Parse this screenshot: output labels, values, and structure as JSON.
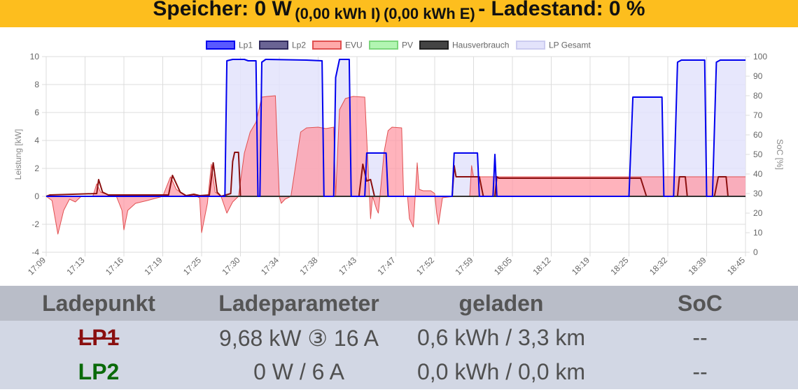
{
  "banner": {
    "speicher": "Speicher: 0 W",
    "import": "(0,00 kWh I)",
    "export": "(0,00 kWh E)",
    "ladestand": "- Ladestand: 0 %"
  },
  "chart_data": {
    "type": "line",
    "legend_position": "top",
    "legend": [
      {
        "label": "Lp1",
        "color": "#0000ee",
        "fill": "#5959ff"
      },
      {
        "label": "Lp2",
        "color": "#302a5c",
        "fill": "#6a6494"
      },
      {
        "label": "EVU",
        "color": "#e05050",
        "fill": "#ffaaaa"
      },
      {
        "label": "PV",
        "color": "#7cd67c",
        "fill": "#b2f5b2"
      },
      {
        "label": "Hausverbrauch",
        "color": "#222222",
        "fill": "#444444"
      },
      {
        "label": "LP Gesamt",
        "color": "#ccccf0",
        "fill": "#e3e3fb"
      }
    ],
    "y_left": {
      "label": "Leistung [kW]",
      "min": -4,
      "max": 10,
      "ticks": [
        "10",
        "8",
        "6",
        "4",
        "2",
        "0",
        "-2",
        "-4"
      ]
    },
    "y_right": {
      "label": "SoC [%]",
      "min": 0,
      "max": 100,
      "ticks": [
        "100",
        "90",
        "80",
        "70",
        "60",
        "50",
        "40",
        "30",
        "20",
        "10",
        "0"
      ]
    },
    "x_ticks": [
      "17:09",
      "17:13",
      "17:16",
      "17:19",
      "17:25",
      "17:30",
      "17:34",
      "17:38",
      "17:43",
      "17:47",
      "17:52",
      "17:59",
      "18:05",
      "18:12",
      "18:19",
      "18:25",
      "18:32",
      "18:39",
      "18:45"
    ],
    "grid": true,
    "series": [
      {
        "name": "Lp1",
        "points": [
          [
            0,
            0
          ],
          [
            4.6,
            0
          ],
          [
            4.65,
            9.7
          ],
          [
            4.8,
            9.8
          ],
          [
            5.1,
            9.8
          ],
          [
            5.2,
            9.7
          ],
          [
            5.4,
            9.7
          ],
          [
            5.45,
            0
          ],
          [
            5.5,
            0
          ],
          [
            5.55,
            9.6
          ],
          [
            5.65,
            9.8
          ],
          [
            6.7,
            9.75
          ],
          [
            7.1,
            9.7
          ],
          [
            7.15,
            0
          ],
          [
            7.4,
            0
          ],
          [
            7.45,
            8.5
          ],
          [
            7.55,
            9.8
          ],
          [
            7.8,
            9.8
          ],
          [
            7.85,
            0
          ],
          [
            8.2,
            0
          ],
          [
            8.25,
            3.1
          ],
          [
            8.75,
            3.1
          ],
          [
            8.8,
            0
          ],
          [
            10.45,
            0
          ],
          [
            10.5,
            3.1
          ],
          [
            11.1,
            3.1
          ],
          [
            11.15,
            0
          ],
          [
            11.5,
            0
          ],
          [
            11.55,
            3.0
          ],
          [
            11.6,
            0
          ],
          [
            15.0,
            0
          ],
          [
            15.1,
            7.1
          ],
          [
            15.85,
            7.1
          ],
          [
            15.9,
            0
          ],
          [
            16.15,
            0
          ],
          [
            16.25,
            9.6
          ],
          [
            16.35,
            9.75
          ],
          [
            16.95,
            9.75
          ],
          [
            17.0,
            0
          ],
          [
            17.15,
            0
          ],
          [
            17.25,
            9.6
          ],
          [
            17.35,
            9.75
          ],
          [
            18.0,
            9.75
          ]
        ]
      },
      {
        "name": "EVU",
        "points": [
          [
            0,
            0
          ],
          [
            0.15,
            -0.3
          ],
          [
            0.3,
            -2.7
          ],
          [
            0.45,
            -1.0
          ],
          [
            0.6,
            -0.2
          ],
          [
            0.75,
            -0.4
          ],
          [
            0.9,
            0
          ],
          [
            1.2,
            0
          ],
          [
            1.3,
            0.9
          ],
          [
            1.4,
            0.3
          ],
          [
            1.6,
            0.1
          ],
          [
            1.8,
            0.05
          ],
          [
            1.95,
            -1.0
          ],
          [
            2.0,
            -2.4
          ],
          [
            2.1,
            -1.0
          ],
          [
            2.3,
            -0.5
          ],
          [
            2.6,
            -0.3
          ],
          [
            3.0,
            0
          ],
          [
            3.2,
            1.4
          ],
          [
            3.35,
            0.5
          ],
          [
            3.6,
            0
          ],
          [
            3.8,
            0.1
          ],
          [
            3.95,
            -0.1
          ],
          [
            4.0,
            -2.6
          ],
          [
            4.15,
            -0.5
          ],
          [
            4.25,
            2.3
          ],
          [
            4.35,
            0.3
          ],
          [
            4.5,
            0
          ],
          [
            4.65,
            -1.2
          ],
          [
            4.8,
            -0.4
          ],
          [
            4.95,
            0
          ],
          [
            5.1,
            3.1
          ],
          [
            5.25,
            4.6
          ],
          [
            5.4,
            5.3
          ],
          [
            5.55,
            7.1
          ],
          [
            5.7,
            7.15
          ],
          [
            5.9,
            7.2
          ],
          [
            6.0,
            0
          ],
          [
            6.05,
            -0.5
          ],
          [
            6.15,
            -0.2
          ],
          [
            6.3,
            0
          ],
          [
            6.55,
            4.6
          ],
          [
            6.7,
            4.9
          ],
          [
            7.0,
            4.95
          ],
          [
            7.2,
            4.85
          ],
          [
            7.4,
            4.95
          ],
          [
            7.45,
            0
          ],
          [
            7.55,
            6.2
          ],
          [
            7.7,
            7.0
          ],
          [
            7.9,
            7.15
          ],
          [
            8.2,
            7.1
          ],
          [
            8.35,
            -1.6
          ],
          [
            8.4,
            0
          ],
          [
            8.5,
            -0.9
          ],
          [
            8.55,
            -1.2
          ],
          [
            8.7,
            3.2
          ],
          [
            8.8,
            4.7
          ],
          [
            8.9,
            4.95
          ],
          [
            9.15,
            4.9
          ],
          [
            9.2,
            0
          ],
          [
            9.3,
            0
          ],
          [
            9.35,
            -1.6
          ],
          [
            9.45,
            -2.2
          ],
          [
            9.55,
            2.4
          ],
          [
            9.6,
            0.5
          ],
          [
            9.7,
            0.4
          ],
          [
            9.9,
            0.4
          ],
          [
            10.0,
            0.2
          ],
          [
            10.05,
            -1.2
          ],
          [
            10.1,
            -2.0
          ],
          [
            10.2,
            -0.1
          ],
          [
            10.5,
            0
          ],
          [
            10.9,
            0
          ],
          [
            10.95,
            2.2
          ],
          [
            11.0,
            1.4
          ],
          [
            11.6,
            1.4
          ],
          [
            17.95,
            1.4
          ],
          [
            18.0,
            1.4
          ]
        ]
      },
      {
        "name": "Lp2",
        "points": [
          [
            0,
            0
          ],
          [
            0.1,
            0.1
          ],
          [
            1.3,
            0.2
          ],
          [
            1.35,
            1.2
          ],
          [
            1.45,
            0.3
          ],
          [
            1.6,
            0.1
          ],
          [
            3.15,
            0.1
          ],
          [
            3.25,
            1.5
          ],
          [
            3.45,
            0.3
          ],
          [
            3.6,
            0.05
          ],
          [
            3.8,
            0.15
          ],
          [
            3.95,
            0.05
          ],
          [
            4.2,
            0.1
          ],
          [
            4.3,
            2.4
          ],
          [
            4.4,
            0.3
          ],
          [
            4.5,
            0
          ],
          [
            4.75,
            0.2
          ],
          [
            4.8,
            2.5
          ],
          [
            4.85,
            3.15
          ],
          [
            4.95,
            3.15
          ],
          [
            5.0,
            0
          ],
          [
            8.05,
            0
          ],
          [
            8.15,
            2.3
          ],
          [
            8.25,
            1.1
          ],
          [
            8.35,
            1.2
          ],
          [
            8.45,
            0
          ],
          [
            10.45,
            0
          ],
          [
            10.5,
            2.2
          ],
          [
            10.55,
            1.4
          ],
          [
            11.15,
            1.4
          ],
          [
            11.25,
            0
          ],
          [
            11.55,
            0
          ],
          [
            11.6,
            1.4
          ],
          [
            11.65,
            1.3
          ],
          [
            15.3,
            1.3
          ],
          [
            15.45,
            0
          ],
          [
            16.25,
            0
          ],
          [
            16.3,
            1.4
          ],
          [
            16.45,
            1.4
          ],
          [
            16.5,
            0
          ],
          [
            17.2,
            0
          ],
          [
            17.3,
            1.4
          ],
          [
            17.5,
            1.4
          ],
          [
            17.55,
            0
          ],
          [
            18.0,
            0
          ]
        ]
      },
      {
        "name": "PV",
        "points": [
          [
            0,
            0
          ],
          [
            18.0,
            0
          ]
        ]
      },
      {
        "name": "Hausverbrauch",
        "points": [
          [
            0,
            0
          ],
          [
            18.0,
            0
          ]
        ]
      },
      {
        "name": "LP Gesamt",
        "points": [
          [
            0,
            0
          ],
          [
            4.6,
            0
          ],
          [
            4.65,
            9.7
          ],
          [
            4.8,
            9.8
          ],
          [
            5.1,
            9.8
          ],
          [
            5.2,
            9.7
          ],
          [
            5.4,
            9.7
          ],
          [
            5.45,
            0
          ],
          [
            5.5,
            0
          ],
          [
            5.55,
            9.6
          ],
          [
            5.65,
            9.8
          ],
          [
            6.7,
            9.75
          ],
          [
            7.1,
            9.7
          ],
          [
            7.15,
            0
          ],
          [
            7.4,
            0
          ],
          [
            7.45,
            8.5
          ],
          [
            7.55,
            9.8
          ],
          [
            7.8,
            9.8
          ],
          [
            7.85,
            0
          ],
          [
            8.2,
            0
          ],
          [
            8.25,
            3.1
          ],
          [
            8.75,
            3.1
          ],
          [
            8.8,
            0
          ],
          [
            10.45,
            0
          ],
          [
            10.5,
            3.1
          ],
          [
            11.1,
            3.1
          ],
          [
            11.15,
            0
          ],
          [
            11.5,
            0
          ],
          [
            11.55,
            3.0
          ],
          [
            11.6,
            0
          ],
          [
            15.0,
            0
          ],
          [
            15.1,
            7.1
          ],
          [
            15.85,
            7.1
          ],
          [
            15.9,
            0
          ],
          [
            16.15,
            0
          ],
          [
            16.25,
            9.6
          ],
          [
            16.35,
            9.75
          ],
          [
            16.95,
            9.75
          ],
          [
            17.0,
            0
          ],
          [
            17.15,
            0
          ],
          [
            17.25,
            9.6
          ],
          [
            17.35,
            9.75
          ],
          [
            18.0,
            9.75
          ]
        ]
      }
    ]
  },
  "table": {
    "headers": [
      "Ladepunkt",
      "Ladeparameter",
      "geladen",
      "SoC"
    ],
    "rows": [
      {
        "name": "LP1",
        "param": "9,68 kW ③ 16 A",
        "charged": "0,6 kWh / 3,3 km",
        "soc": "--"
      },
      {
        "name": "LP2",
        "param": "0 W / 6 A",
        "charged": "0,0 kWh / 0,0 km",
        "soc": "--"
      }
    ]
  }
}
